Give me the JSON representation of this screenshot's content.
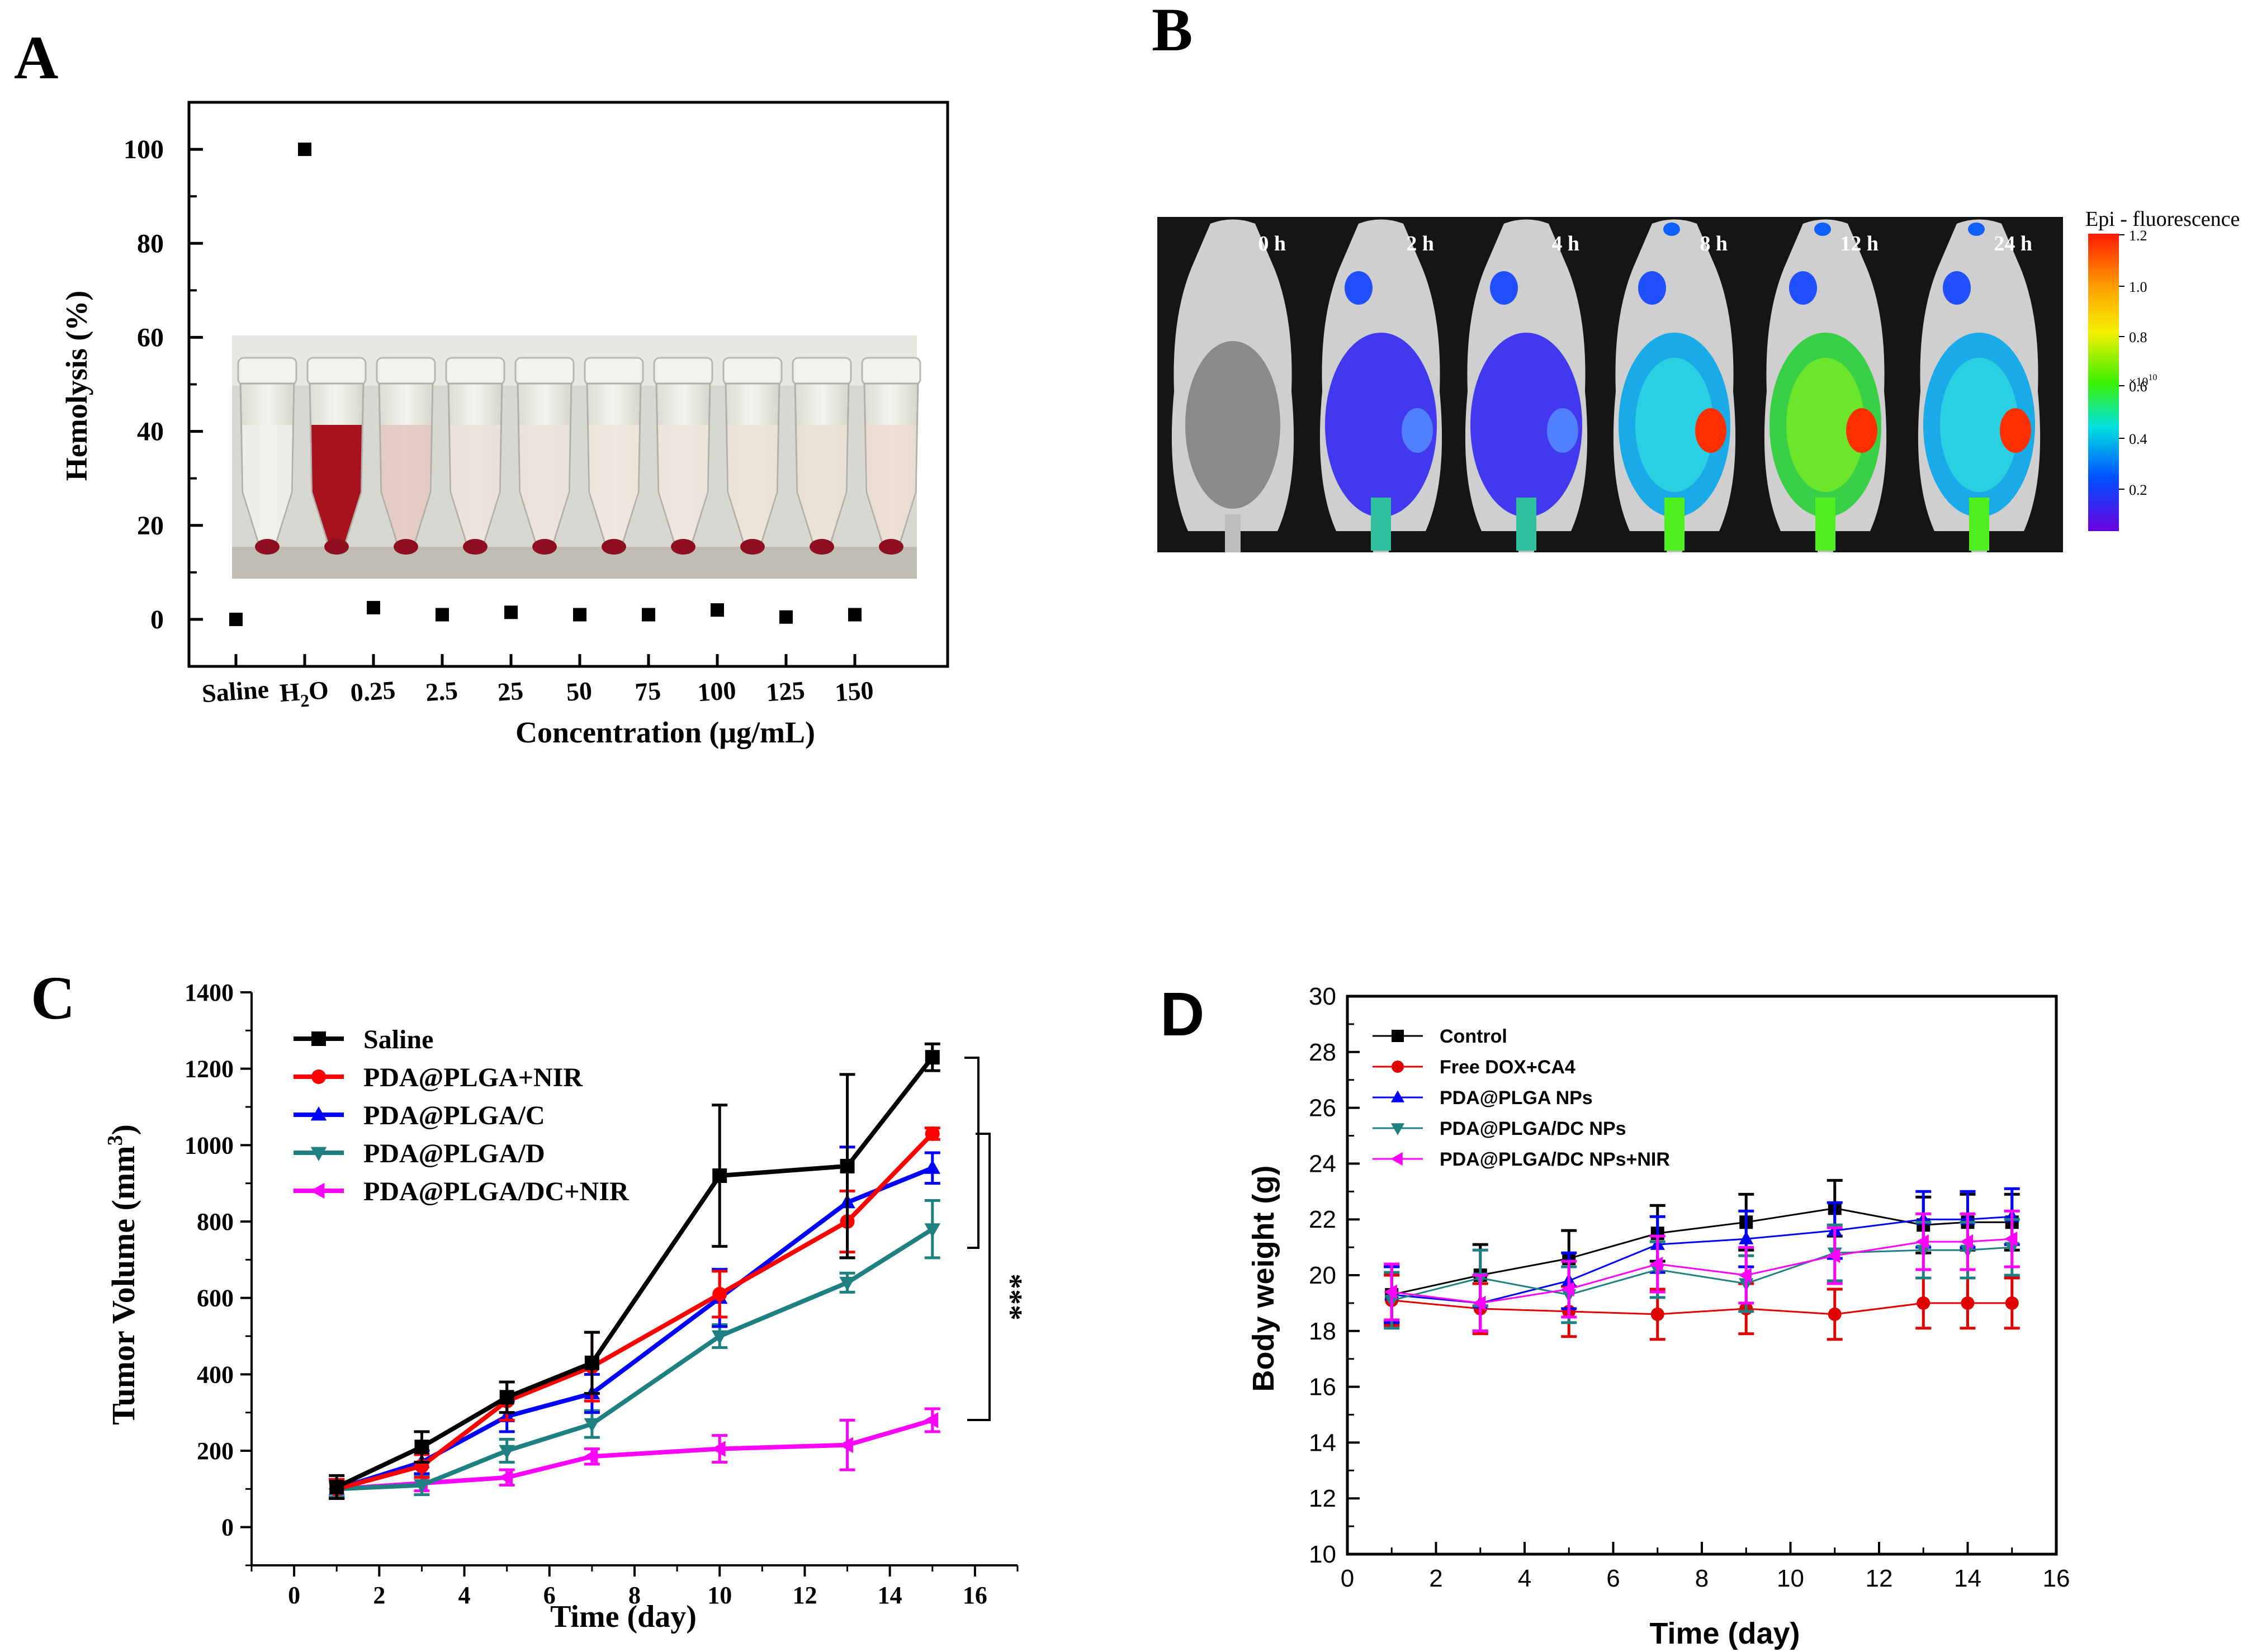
{
  "panels": {
    "A": {
      "letter": "A",
      "photo_description": "",
      "chart_data": {
        "type": "scatter",
        "categories": [
          "Saline",
          "H2O",
          "0.25",
          "2.5",
          "25",
          "50",
          "75",
          "100",
          "125",
          "150"
        ],
        "category_labels": [
          "Saline",
          "H",
          "0.25",
          "2.5",
          "25",
          "50",
          "75",
          "100",
          "125",
          "150"
        ],
        "h2o_subscript": "2",
        "h2o_suffix": "O",
        "values": [
          0,
          100,
          2.5,
          1,
          1.5,
          1,
          1,
          2,
          0.5,
          1
        ],
        "ylabel": "Hemolysis (%)",
        "xlabel": "Concentration (μg/mL)",
        "ylim": [
          -10,
          110
        ],
        "yticks": [
          0,
          20,
          40,
          60,
          80,
          100
        ]
      }
    },
    "B": {
      "letter": "B",
      "time_labels": [
        "0 h",
        "2 h",
        "4 h",
        "8 h",
        "12 h",
        "24 h"
      ],
      "colorbar": {
        "title": "Epi - fluorescence",
        "ticks": [
          "1.2",
          "1.0",
          "0.8",
          "0.6",
          "0.4",
          "0.2"
        ],
        "unit": "×10",
        "unit_exponent": "10",
        "colors": [
          "#ff1a00",
          "#ffa000",
          "#f5f000",
          "#3cf000",
          "#00e0e0",
          "#0050ff",
          "#6a00e0"
        ]
      }
    },
    "C": {
      "letter": "C",
      "significance": "***",
      "chart_data": {
        "type": "line",
        "x": [
          1,
          3,
          5,
          7,
          10,
          13,
          15
        ],
        "series": [
          {
            "name": "Saline",
            "color": "#000000",
            "marker": "square",
            "values": [
              105,
              210,
              340,
              430,
              920,
              945,
              1230
            ],
            "errors": [
              30,
              40,
              40,
              80,
              185,
              240,
              35
            ]
          },
          {
            "name": "PDA@PLGA+NIR",
            "color": "#ff0000",
            "marker": "circle",
            "values": [
              100,
              160,
              330,
              420,
              610,
              800,
              1030
            ],
            "errors": [
              25,
              30,
              50,
              90,
              60,
              80,
              15
            ]
          },
          {
            "name": "PDA@PLGA/C",
            "color": "#0000ff",
            "marker": "triangle-up",
            "values": [
              100,
              170,
              290,
              350,
              600,
              850,
              940
            ],
            "errors": [
              25,
              30,
              40,
              50,
              75,
              145,
              40
            ]
          },
          {
            "name": "PDA@PLGA/D",
            "color": "#1e8080",
            "marker": "triangle-down",
            "values": [
              100,
              110,
              200,
              270,
              500,
              640,
              780
            ],
            "errors": [
              20,
              25,
              30,
              35,
              30,
              25,
              75
            ]
          },
          {
            "name": "PDA@PLGA/DC+NIR",
            "color": "#ff00ff",
            "marker": "triangle-left",
            "values": [
              100,
              115,
              130,
              185,
              205,
              215,
              280
            ],
            "errors": [
              20,
              20,
              20,
              20,
              35,
              65,
              30
            ]
          }
        ],
        "xlabel": "Time (day)",
        "ylabel": "Tumor Volume (mm",
        "ylabel_sup": "3",
        "ylabel_end": ")",
        "xlim": [
          -1,
          17
        ],
        "ylim": [
          -100,
          1400
        ],
        "xticks": [
          0,
          2,
          4,
          6,
          8,
          10,
          12,
          14,
          16
        ],
        "yticks": [
          0,
          200,
          400,
          600,
          800,
          1000,
          1200,
          1400
        ]
      }
    },
    "D": {
      "letter": "D",
      "chart_data": {
        "type": "line",
        "x": [
          1,
          3,
          5,
          7,
          9,
          11,
          13,
          14,
          15
        ],
        "series": [
          {
            "name": "Control",
            "color": "#000000",
            "marker": "square",
            "values": [
              19.3,
              20.0,
              20.6,
              21.5,
              21.9,
              22.4,
              21.8,
              21.9,
              21.9
            ],
            "errors": [
              1.0,
              1.1,
              1.0,
              1.0,
              1.0,
              1.0,
              1.0,
              1.0,
              1.0
            ]
          },
          {
            "name": "Free DOX+CA4",
            "color": "#e00000",
            "marker": "circle",
            "values": [
              19.1,
              18.8,
              18.7,
              18.6,
              18.8,
              18.6,
              19.0,
              19.0,
              19.0
            ],
            "errors": [
              0.9,
              0.9,
              0.9,
              0.9,
              0.9,
              0.9,
              0.9,
              0.9,
              0.9
            ]
          },
          {
            "name": "PDA@PLGA NPs",
            "color": "#0000ff",
            "marker": "triangle-up",
            "values": [
              19.3,
              19.0,
              19.8,
              21.1,
              21.3,
              21.6,
              22.0,
              22.0,
              22.1
            ],
            "errors": [
              1.0,
              1.0,
              1.0,
              1.0,
              1.0,
              1.0,
              1.0,
              1.0,
              1.0
            ]
          },
          {
            "name": "PDA@PLGA/DC NPs",
            "color": "#1e8080",
            "marker": "triangle-down",
            "values": [
              19.1,
              19.9,
              19.3,
              20.2,
              19.7,
              20.8,
              20.9,
              20.9,
              21.0
            ],
            "errors": [
              1.0,
              1.0,
              1.0,
              1.0,
              1.0,
              1.0,
              1.0,
              1.0,
              1.0
            ]
          },
          {
            "name": "PDA@PLGA/DC NPs+NIR",
            "color": "#ff00ff",
            "marker": "triangle-left",
            "values": [
              19.4,
              19.0,
              19.5,
              20.4,
              20.0,
              20.7,
              21.2,
              21.2,
              21.3
            ],
            "errors": [
              1.0,
              1.0,
              1.0,
              1.0,
              1.0,
              1.0,
              1.0,
              1.0,
              1.0
            ]
          }
        ],
        "xlabel": "Time (day)",
        "ylabel": "Body weight (g)",
        "xlim": [
          0,
          16
        ],
        "ylim": [
          10,
          30
        ],
        "xticks": [
          0,
          2,
          4,
          6,
          8,
          10,
          12,
          14,
          16
        ],
        "yticks": [
          10,
          12,
          14,
          16,
          18,
          20,
          22,
          24,
          26,
          28,
          30
        ]
      }
    }
  }
}
